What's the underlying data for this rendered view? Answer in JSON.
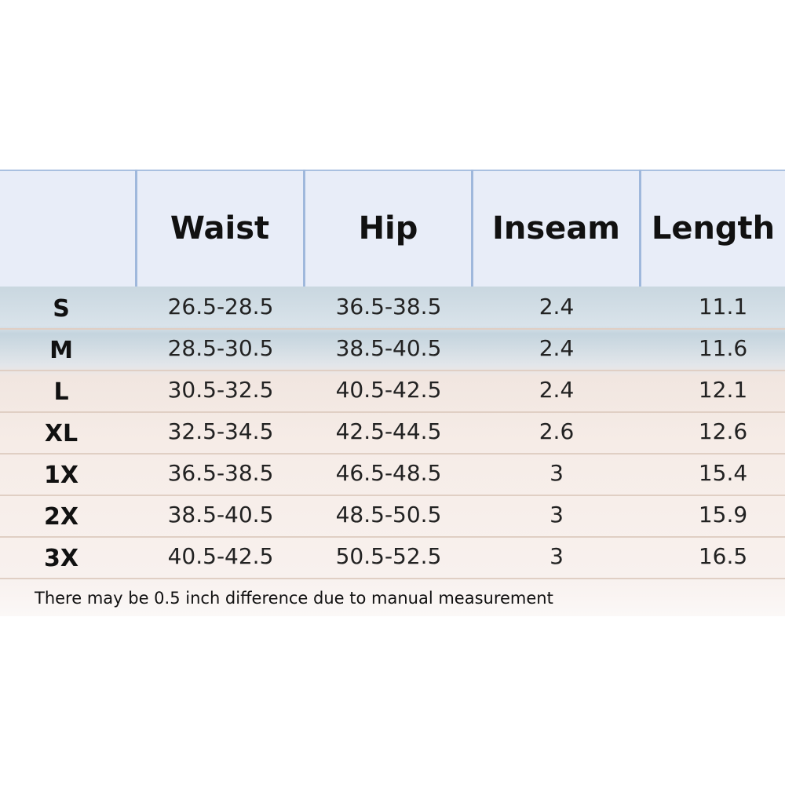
{
  "header": {
    "columns": [
      "Waist",
      "Hip",
      "Inseam",
      "Length"
    ]
  },
  "rows": [
    {
      "size": "S",
      "values": [
        "26.5-28.5",
        "36.5-38.5",
        "2.4",
        "11.1"
      ]
    },
    {
      "size": "M",
      "values": [
        "28.5-30.5",
        "38.5-40.5",
        "2.4",
        "11.6"
      ]
    },
    {
      "size": "L",
      "values": [
        "30.5-32.5",
        "40.5-42.5",
        "2.4",
        "12.1"
      ]
    },
    {
      "size": "XL",
      "values": [
        "32.5-34.5",
        "42.5-44.5",
        "2.6",
        "12.6"
      ]
    },
    {
      "size": "1X",
      "values": [
        "36.5-38.5",
        "46.5-48.5",
        "3",
        "15.4"
      ]
    },
    {
      "size": "2X",
      "values": [
        "38.5-40.5",
        "48.5-50.5",
        "3",
        "15.9"
      ]
    },
    {
      "size": "3X",
      "values": [
        "40.5-42.5",
        "50.5-52.5",
        "3",
        "16.5"
      ]
    }
  ],
  "note": "There may be 0.5 inch difference due to manual measurement"
}
